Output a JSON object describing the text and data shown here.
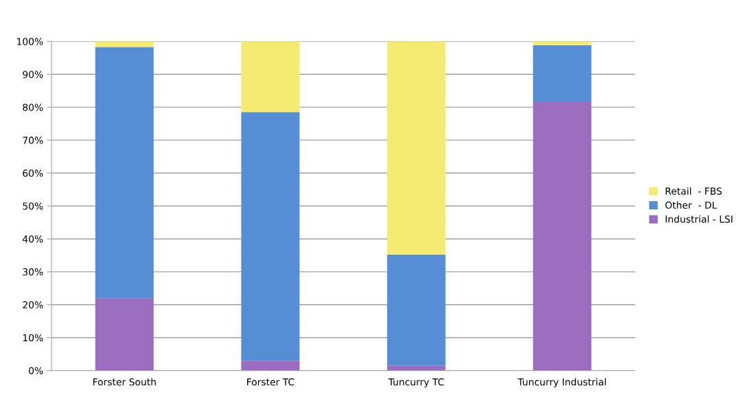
{
  "chart_data": {
    "type": "bar",
    "stacked": true,
    "categories": [
      "Forster South",
      "Forster TC",
      "Tuncurry TC",
      "Tuncurry Industrial"
    ],
    "series": [
      {
        "name": "Industrial - LSI",
        "color": "#9a6dbf",
        "values": [
          22,
          3,
          1.5,
          81.7
        ]
      },
      {
        "name": "Other  - DL",
        "color": "#558ed5",
        "values": [
          76.3,
          75.5,
          33.7,
          17.1
        ]
      },
      {
        "name": "Retail  - FBS",
        "color": "#f6eb72",
        "values": [
          1.7,
          21.5,
          64.8,
          1.2
        ]
      }
    ],
    "ylim": [
      0,
      100
    ],
    "yticks": [
      {
        "value": 0,
        "label": "0%"
      },
      {
        "value": 10,
        "label": "10%"
      },
      {
        "value": 20,
        "label": "20%"
      },
      {
        "value": 30,
        "label": "30%"
      },
      {
        "value": 40,
        "label": "40%"
      },
      {
        "value": 50,
        "label": "50%"
      },
      {
        "value": 60,
        "label": "60%"
      },
      {
        "value": 70,
        "label": "70%"
      },
      {
        "value": 80,
        "label": "80%"
      },
      {
        "value": 90,
        "label": "90%"
      },
      {
        "value": 100,
        "label": "100%"
      }
    ],
    "grid": "y",
    "legend": "right"
  }
}
